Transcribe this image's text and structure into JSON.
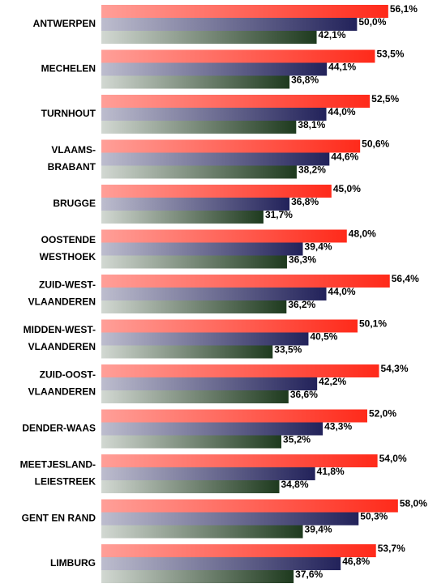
{
  "chart_data": {
    "type": "bar",
    "orientation": "horizontal",
    "categories": [
      [
        "ANTWERPEN"
      ],
      [
        "MECHELEN"
      ],
      [
        "TURNHOUT"
      ],
      [
        "VLAAMS-",
        "BRABANT"
      ],
      [
        "BRUGGE"
      ],
      [
        "OOSTENDE",
        "WESTHOEK"
      ],
      [
        "ZUID-WEST-",
        "VLAANDEREN"
      ],
      [
        "MIDDEN-WEST-",
        "VLAANDEREN"
      ],
      [
        "ZUID-OOST-",
        "VLAANDEREN"
      ],
      [
        "DENDER-WAAS"
      ],
      [
        "MEETJESLAND-",
        "LEIESTREEK"
      ],
      [
        "GENT EN RAND"
      ],
      [
        "LIMBURG"
      ]
    ],
    "xlim": [
      0,
      65
    ],
    "series": [
      {
        "color": "#ff2a1a",
        "values": [
          56.1,
          53.5,
          52.5,
          50.6,
          45.0,
          48.0,
          56.4,
          50.1,
          54.3,
          52.0,
          54.0,
          58.0,
          53.7
        ],
        "value_labels": [
          "56,1%",
          "53,5%",
          "52,5%",
          "50,6%",
          "45,0%",
          "48,0%",
          "56,4%",
          "50,1%",
          "54,3%",
          "52,0%",
          "54,0%",
          "58,0%",
          "53,7%"
        ]
      },
      {
        "color": "#22225a",
        "values": [
          50.0,
          44.1,
          44.0,
          44.6,
          36.8,
          39.4,
          44.0,
          40.5,
          42.2,
          43.3,
          41.8,
          50.3,
          46.8
        ],
        "value_labels": [
          "50,0%",
          "44,1%",
          "44,0%",
          "44,6%",
          "36,8%",
          "39,4%",
          "44,0%",
          "40,5%",
          "42,2%",
          "43,3%",
          "41,8%",
          "50,3%",
          "46,8%"
        ]
      },
      {
        "color": "#1e3a1e",
        "values": [
          42.1,
          36.8,
          38.1,
          38.2,
          31.7,
          36.3,
          36.2,
          33.5,
          36.6,
          35.2,
          34.8,
          39.4,
          37.6
        ],
        "value_labels": [
          "42,1%",
          "36,8%",
          "38,1%",
          "38,2%",
          "31,7%",
          "36,3%",
          "36,2%",
          "33,5%",
          "36,6%",
          "35,2%",
          "34,8%",
          "39,4%",
          "37,6%"
        ]
      }
    ]
  }
}
